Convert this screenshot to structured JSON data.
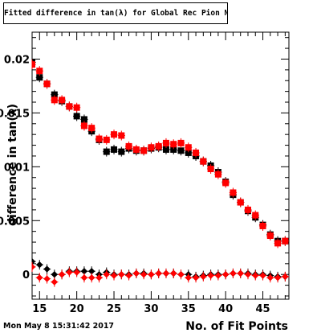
{
  "timestamp": "Mon May  8 15:31:42 2017",
  "chart_data": {
    "type": "scatter",
    "title": "Fitted difference in tan(λ) for Global Rec Pion NoHits",
    "xlabel": "No. of Fit Points",
    "ylabel": "difference in tan(λ)",
    "xlim": [
      14,
      48.5
    ],
    "ylim": [
      -0.0023,
      0.0225
    ],
    "x_ticks": [
      15,
      20,
      25,
      30,
      35,
      40,
      45
    ],
    "y_ticks": [
      0,
      0.005,
      0.01,
      0.015,
      0.02
    ],
    "y_tick_labels": [
      "0",
      "0.005",
      "0.01",
      "0.015",
      "0.02"
    ],
    "grid": false,
    "series": [
      {
        "marker": "square",
        "color": "#000000",
        "x": [
          14,
          15,
          16,
          17,
          18,
          19,
          20,
          21,
          22,
          23,
          24,
          25,
          26,
          27,
          28,
          29,
          30,
          31,
          32,
          33,
          34,
          35,
          36,
          37,
          38,
          39,
          40,
          41,
          42,
          43,
          44,
          45,
          46,
          47,
          48
        ],
        "values": [
          0.0197,
          0.0183,
          0.0177,
          0.0167,
          0.0161,
          0.0156,
          0.0147,
          0.0144,
          0.0133,
          0.0125,
          0.0114,
          0.0116,
          0.0114,
          0.0117,
          0.0115,
          0.0115,
          0.0117,
          0.0118,
          0.0116,
          0.0116,
          0.0115,
          0.0113,
          0.011,
          0.0105,
          0.0101,
          0.0095,
          0.0086,
          0.0074,
          0.0067,
          0.0059,
          0.0053,
          0.0046,
          0.0037,
          0.0031,
          0.0031
        ]
      },
      {
        "marker": "square",
        "color": "#ff0000",
        "x": [
          14,
          15,
          16,
          17,
          18,
          19,
          20,
          21,
          22,
          23,
          24,
          25,
          26,
          27,
          28,
          29,
          30,
          31,
          32,
          33,
          34,
          35,
          36,
          37,
          38,
          39,
          40,
          41,
          42,
          43,
          44,
          45,
          46,
          47,
          48
        ],
        "values": [
          0.0195,
          0.0189,
          0.0177,
          0.0162,
          0.0162,
          0.0156,
          0.0155,
          0.0138,
          0.0136,
          0.0126,
          0.0125,
          0.013,
          0.0129,
          0.0119,
          0.0116,
          0.0115,
          0.0118,
          0.0119,
          0.0122,
          0.0121,
          0.0122,
          0.0118,
          0.0113,
          0.0105,
          0.0098,
          0.0093,
          0.0085,
          0.0076,
          0.0067,
          0.006,
          0.0055,
          0.0045,
          0.0036,
          0.0029,
          0.0031
        ]
      },
      {
        "marker": "diamond",
        "color": "#000000",
        "x": [
          14,
          15,
          16,
          17,
          18,
          19,
          20,
          21,
          22,
          23,
          24,
          25,
          26,
          27,
          28,
          29,
          30,
          31,
          32,
          33,
          34,
          35,
          36,
          37,
          38,
          39,
          40,
          41,
          42,
          43,
          44,
          45,
          46,
          47,
          48
        ],
        "values": [
          0.0012,
          0.0009,
          0.0005,
          0.0,
          0.0,
          0.0003,
          0.0003,
          0.0003,
          0.0003,
          0.0,
          0.0002,
          0.0,
          0.0,
          0.0,
          0.0001,
          0.0001,
          0.0,
          0.0001,
          0.0001,
          0.0001,
          0.0,
          0.0,
          -0.0002,
          -0.0001,
          0.0,
          0.0,
          0.0,
          0.0001,
          0.0001,
          0.0001,
          0.0,
          0.0,
          -0.0001,
          -0.0002,
          -0.0002
        ]
      },
      {
        "marker": "diamond",
        "color": "#ff0000",
        "x": [
          14,
          15,
          16,
          17,
          18,
          19,
          20,
          21,
          22,
          23,
          24,
          25,
          26,
          27,
          28,
          29,
          30,
          31,
          32,
          33,
          34,
          35,
          36,
          37,
          38,
          39,
          40,
          41,
          42,
          43,
          44,
          45,
          46,
          47,
          48
        ],
        "values": [
          0.0007,
          -0.0003,
          -0.0004,
          -0.0007,
          0.0,
          0.0002,
          0.0002,
          -0.0003,
          -0.0003,
          -0.0003,
          0.0,
          -0.0001,
          0.0,
          -0.0001,
          0.0001,
          0.0,
          0.0,
          0.0001,
          0.0001,
          0.0001,
          0.0,
          -0.0003,
          -0.0003,
          -0.0002,
          -0.0001,
          -0.0001,
          0.0,
          0.0001,
          0.0001,
          0.0,
          -0.0001,
          -0.0001,
          -0.0003,
          -0.0003,
          -0.0002
        ]
      }
    ]
  }
}
